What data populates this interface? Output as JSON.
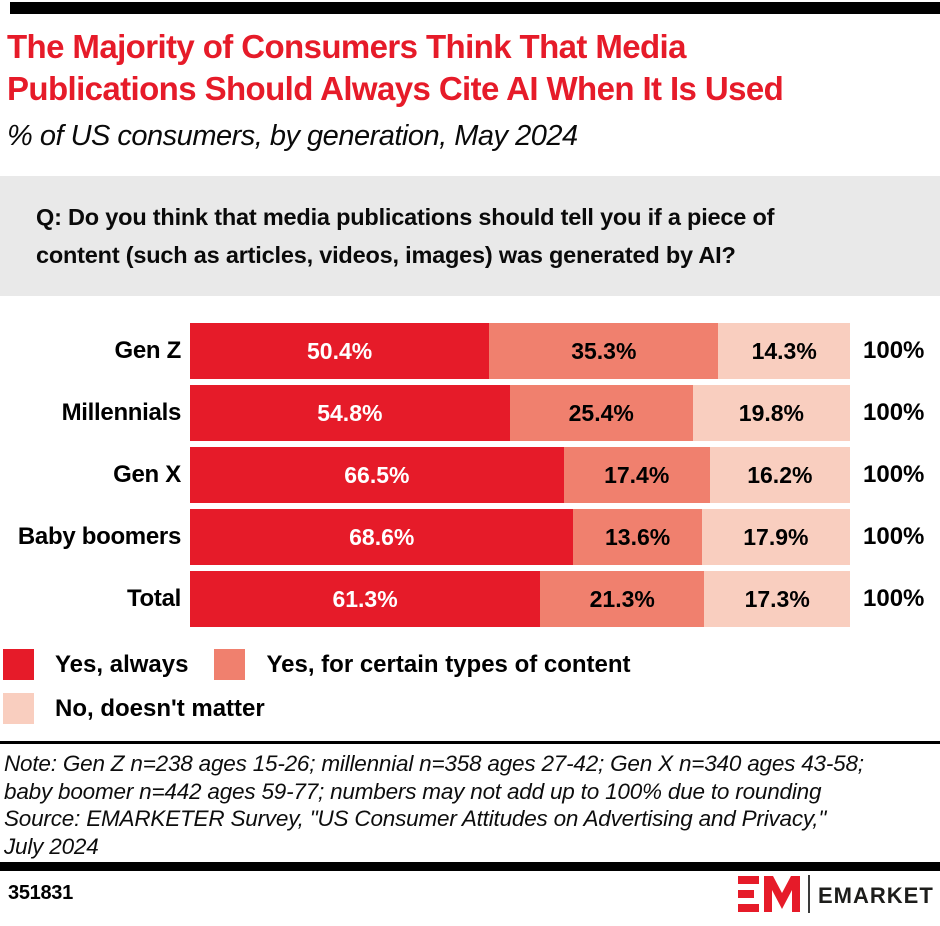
{
  "header": {
    "title_lines": [
      "The Majority of Consumers Think That Media",
      "Publications Should Always Cite AI When It Is Used"
    ],
    "subtitle": "% of US consumers, by generation, May 2024"
  },
  "question": {
    "lines": [
      "Q: Do you think that media publications should tell you if a piece of",
      "content (such as articles, videos, images) was generated by AI?"
    ]
  },
  "chart_data": {
    "type": "bar",
    "orientation": "horizontal_stacked",
    "unit": "%",
    "categories": [
      "Gen Z",
      "Millennials",
      "Gen X",
      "Baby boomers",
      "Total"
    ],
    "series": [
      {
        "name": "Yes, always",
        "color": "#e61b29",
        "text_color": "#ffffff",
        "values": [
          50.4,
          54.8,
          66.5,
          68.6,
          61.3
        ]
      },
      {
        "name": "Yes, for certain types of content",
        "color": "#f0806e",
        "text_color": "#000000",
        "values": [
          35.3,
          25.4,
          17.4,
          13.6,
          21.3
        ]
      },
      {
        "name": "No, doesn't matter",
        "color": "#f9cebf",
        "text_color": "#000000",
        "values": [
          14.3,
          19.8,
          16.2,
          17.9,
          17.3
        ]
      }
    ],
    "row_total_label": "100%",
    "value_suffix": "%",
    "legend_position": "bottom",
    "axis_range": [
      0,
      100
    ],
    "grid": false
  },
  "note": {
    "lines": [
      "Note: Gen Z n=238 ages 15-26; millennial n=358 ages 27-42; Gen X n=340 ages 43-58;",
      "baby boomer n=442 ages 59-77; numbers may not add up to 100% due to rounding",
      "Source: EMARKETER Survey, \"US Consumer Attitudes on Advertising and Privacy,\"",
      "July 2024"
    ]
  },
  "footer": {
    "chart_number": "351831",
    "brand": "EMARKETER"
  },
  "colors": {
    "brand_red": "#e61b29",
    "salmon": "#f0806e",
    "light_pink": "#f9cebf",
    "question_bg": "#e9e9e9",
    "bar_black": "#000000"
  }
}
